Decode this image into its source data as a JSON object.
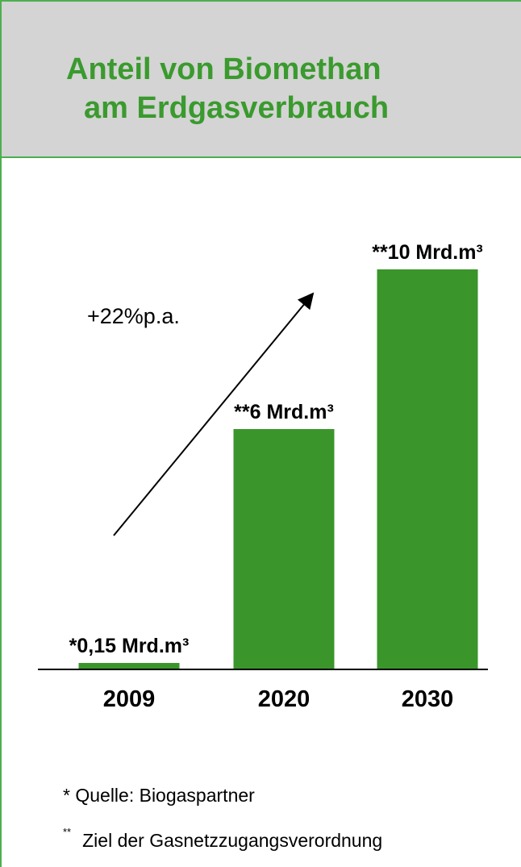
{
  "header": {
    "title_line1": "Anteil von Biomethan",
    "title_line2": "am Erdgasverbrauch"
  },
  "colors": {
    "bar": "#3a962a",
    "title": "#3a9a2e",
    "border": "#4caf50",
    "header_bg": "#d4d4d4"
  },
  "chart_data": {
    "type": "bar",
    "categories": [
      "2009",
      "2020",
      "2030"
    ],
    "values": [
      0.15,
      6,
      10
    ],
    "data_labels": [
      "*0,15 Mrd.m³",
      "**6 Mrd.m³",
      "**10 Mrd.m³"
    ],
    "title": "Anteil von Biomethan am Erdgasverbrauch",
    "xlabel": "",
    "ylabel": "",
    "ylim": [
      0,
      10
    ],
    "grid": false,
    "annotations": [
      "+22%p.a."
    ],
    "axes_visible": {
      "x": true,
      "y": false
    }
  },
  "footnotes": {
    "note1": "* Quelle: Biogaspartner",
    "note2_marker": "**",
    "note2_text": "Ziel der Gasnetzzugangsverordnung"
  }
}
